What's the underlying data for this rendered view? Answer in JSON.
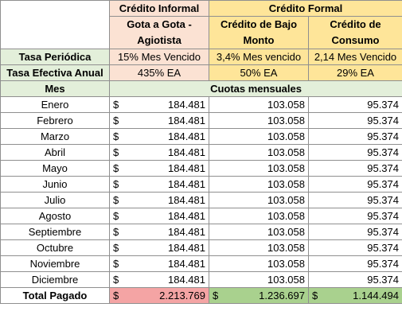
{
  "header": {
    "informal_group": "Crédito Informal",
    "formal_group": "Crédito Formal",
    "col1_title": "Gota a Gota - Agiotista",
    "col2_title": "Crédito de Bajo Monto",
    "col3_title": "Crédito de Consumo"
  },
  "rates": {
    "periodic_label": "Tasa Periódica",
    "periodic": [
      "15% Mes Vencido",
      "3,4% Mes vencido",
      "2,14 Mes Vencido"
    ],
    "effective_label": "Tasa Efectiva Anual",
    "effective": [
      "435% EA",
      "50% EA",
      "29% EA"
    ]
  },
  "table": {
    "month_header": "Mes",
    "payments_header": "Cuotas mensuales",
    "currency": "$",
    "rows": [
      {
        "month": "Enero",
        "c1": "184.481",
        "c2": "103.058",
        "c3": "95.374"
      },
      {
        "month": "Febrero",
        "c1": "184.481",
        "c2": "103.058",
        "c3": "95.374"
      },
      {
        "month": "Marzo",
        "c1": "184.481",
        "c2": "103.058",
        "c3": "95.374"
      },
      {
        "month": "Abril",
        "c1": "184.481",
        "c2": "103.058",
        "c3": "95.374"
      },
      {
        "month": "Mayo",
        "c1": "184.481",
        "c2": "103.058",
        "c3": "95.374"
      },
      {
        "month": "Junio",
        "c1": "184.481",
        "c2": "103.058",
        "c3": "95.374"
      },
      {
        "month": "Julio",
        "c1": "184.481",
        "c2": "103.058",
        "c3": "95.374"
      },
      {
        "month": "Agosto",
        "c1": "184.481",
        "c2": "103.058",
        "c3": "95.374"
      },
      {
        "month": "Septiembre",
        "c1": "184.481",
        "c2": "103.058",
        "c3": "95.374"
      },
      {
        "month": "Octubre",
        "c1": "184.481",
        "c2": "103.058",
        "c3": "95.374"
      },
      {
        "month": "Noviembre",
        "c1": "184.481",
        "c2": "103.058",
        "c3": "95.374"
      },
      {
        "month": "Diciembre",
        "c1": "184.481",
        "c2": "103.058",
        "c3": "95.374"
      }
    ],
    "total_label": "Total Pagado",
    "totals": [
      "2.213.769",
      "1.236.697",
      "1.144.494"
    ]
  },
  "colors": {
    "peach": "#fbe2d3",
    "yellow": "#fee599",
    "green": "#e3efda",
    "red_total": "#f4a4a4",
    "green_total": "#a9d18e"
  }
}
